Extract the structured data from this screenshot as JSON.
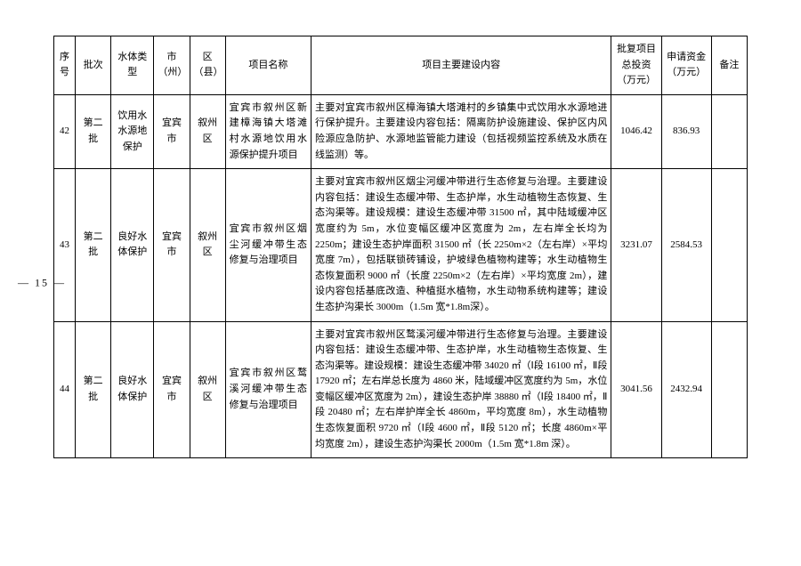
{
  "page_number": "— 15 —",
  "headers": {
    "seq": "序号",
    "batch": "批次",
    "type": "水体类型",
    "city": "市（州）",
    "county": "区（县）",
    "name": "项目名称",
    "content": "项目主要建设内容",
    "invest": "批复项目总投资（万元）",
    "fund": "申请资金（万元）",
    "remark": "备注"
  },
  "rows": [
    {
      "seq": "42",
      "batch": "第二批",
      "type": "饮用水水源地保护",
      "city": "宜宾市",
      "county": "叙州区",
      "name": "宜宾市叙州区新建樟海镇大塔滩村水源地饮用水源保护提升项目",
      "content": "主要对宜宾市叙州区樟海镇大塔滩村的乡镇集中式饮用水水源地进行保护提升。主要建设内容包括：隔离防护设施建设、保护区内风险源应急防护、水源地监管能力建设（包括视频监控系统及水质在线监测）等。",
      "invest": "1046.42",
      "fund": "836.93",
      "remark": ""
    },
    {
      "seq": "43",
      "batch": "第二批",
      "type": "良好水体保护",
      "city": "宜宾市",
      "county": "叙州区",
      "name": "宜宾市叙州区烟尘河缓冲带生态修复与治理项目",
      "content": "主要对宜宾市叙州区烟尘河缓冲带进行生态修复与治理。主要建设内容包括：建设生态缓冲带、生态护岸，水生动植物生态恢复、生态沟渠等。建设规模：建设生态缓冲带 31500 ㎡，其中陆域缓冲区宽度约为 5m，水位变幅区缓冲区宽度为 2m，左右岸全长均为 2250m；建设生态护岸面积 31500 ㎡（长 2250m×2（左右岸）×平均宽度 7m），包括联锁砖铺设，护坡绿色植物构建等；水生动植物生态恢复面积 9000 ㎡（长度 2250m×2（左右岸）×平均宽度 2m），建设内容包括基底改造、种植挺水植物，水生动物系统构建等；建设生态护沟渠长 3000m（1.5m 宽*1.8m深）。",
      "invest": "3231.07",
      "fund": "2584.53",
      "remark": ""
    },
    {
      "seq": "44",
      "batch": "第二批",
      "type": "良好水体保护",
      "city": "宜宾市",
      "county": "叙州区",
      "name": "宜宾市叙州区鹜溪河缓冲带生态修复与治理项目",
      "content": "主要对宜宾市叙州区鹜溪河缓冲带进行生态修复与治理。主要建设内容包括：建设生态缓冲带、生态护岸，水生动植物生态恢复、生态沟渠等。建设规模：建设生态缓冲带 34020 ㎡（Ⅰ段 16100 ㎡，Ⅱ段 17920 ㎡；左右岸总长度为 4860 米，陆域缓冲区宽度约为 5m，水位变幅区缓冲区宽度为 2m），建设生态护岸 38880 ㎡（Ⅰ段 18400 ㎡，Ⅱ段 20480 ㎡；左右岸护岸全长 4860m，平均宽度 8m），水生动植物生态恢复面积 9720 ㎡（Ⅰ段 4600 ㎡，Ⅱ段 5120 ㎡；长度 4860m×平均宽度 2m），建设生态护沟渠长 2000m（1.5m 宽*1.8m 深）。",
      "invest": "3041.56",
      "fund": "2432.94",
      "remark": ""
    }
  ]
}
